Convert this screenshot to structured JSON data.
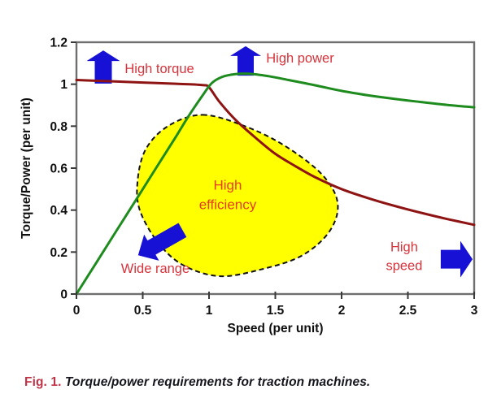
{
  "figure": {
    "caption_label": "Fig. 1.",
    "caption_text": "Torque/power requirements for traction machines."
  },
  "colors": {
    "plot_border": "#6f6f6f",
    "tick_mark": "#3a3a3a",
    "tick_text": "#101010",
    "axis_title_text": "#101010",
    "arrow_blue": "#1711d6",
    "caption_label_red": "#c03347",
    "background": "#ffffff"
  },
  "chart_data": {
    "type": "line",
    "title": "",
    "xlabel": "Speed (per unit)",
    "ylabel": "Torque/Power (per unit)",
    "xlim": [
      0,
      3
    ],
    "ylim": [
      0,
      1.2
    ],
    "grid": false,
    "legend": "none",
    "x_ticks": [
      0,
      0.5,
      1,
      1.5,
      2,
      2.5,
      3
    ],
    "x_tick_labels": [
      "0",
      "0.5",
      "1",
      "1.5",
      "2",
      "2.5",
      "3"
    ],
    "y_ticks": [
      0,
      0.2,
      0.4,
      0.6,
      0.8,
      1,
      1.2
    ],
    "y_tick_labels": [
      "0",
      "0.2",
      "0.4",
      "0.6",
      "0.8",
      "1",
      "1.2"
    ],
    "series": [
      {
        "name": "torque-curve",
        "color": "#8e1414",
        "width": 3,
        "points": [
          [
            0,
            1.02
          ],
          [
            0.25,
            1.014
          ],
          [
            0.5,
            1.008
          ],
          [
            0.75,
            1.002
          ],
          [
            0.95,
            0.996
          ],
          [
            1.0,
            0.985
          ],
          [
            1.08,
            0.915
          ],
          [
            1.2,
            0.83
          ],
          [
            1.35,
            0.745
          ],
          [
            1.5,
            0.668
          ],
          [
            1.65,
            0.61
          ],
          [
            1.8,
            0.557
          ],
          [
            2.0,
            0.5
          ],
          [
            2.2,
            0.457
          ],
          [
            2.4,
            0.42
          ],
          [
            2.6,
            0.387
          ],
          [
            2.8,
            0.357
          ],
          [
            3.0,
            0.33
          ]
        ]
      },
      {
        "name": "power-curve",
        "color": "#1e8b1e",
        "width": 3,
        "points": [
          [
            0,
            0
          ],
          [
            0.15,
            0.15
          ],
          [
            0.3,
            0.3
          ],
          [
            0.45,
            0.45
          ],
          [
            0.6,
            0.6
          ],
          [
            0.75,
            0.75
          ],
          [
            0.85,
            0.852
          ],
          [
            0.95,
            0.945
          ],
          [
            1.02,
            1.005
          ],
          [
            1.1,
            1.035
          ],
          [
            1.2,
            1.048
          ],
          [
            1.3,
            1.05
          ],
          [
            1.45,
            1.038
          ],
          [
            1.6,
            1.02
          ],
          [
            1.8,
            0.995
          ],
          [
            2.0,
            0.968
          ],
          [
            2.2,
            0.947
          ],
          [
            2.4,
            0.93
          ],
          [
            2.6,
            0.915
          ],
          [
            2.8,
            0.901
          ],
          [
            3.0,
            0.89
          ]
        ]
      }
    ],
    "efficiency_region": {
      "fill": "#ffff00",
      "border_color": "#111111",
      "border_style": "dashed",
      "points": [
        [
          0.95,
          0.854
        ],
        [
          1.27,
          0.8
        ],
        [
          1.57,
          0.707
        ],
        [
          1.85,
          0.571
        ],
        [
          1.97,
          0.435
        ],
        [
          1.91,
          0.3
        ],
        [
          1.7,
          0.183
        ],
        [
          1.39,
          0.117
        ],
        [
          1.08,
          0.085
        ],
        [
          0.81,
          0.136
        ],
        [
          0.62,
          0.241
        ],
        [
          0.48,
          0.396
        ],
        [
          0.46,
          0.532
        ],
        [
          0.52,
          0.687
        ],
        [
          0.69,
          0.8
        ]
      ]
    },
    "annotations": [
      {
        "id": "high-torque",
        "lines": [
          "High torque"
        ],
        "x": 0.626,
        "y": 1.072,
        "color": "#d7333b",
        "size": 16.5
      },
      {
        "id": "high-power",
        "lines": [
          "High power"
        ],
        "x": 1.687,
        "y": 1.123,
        "color": "#d7333b",
        "size": 16.5
      },
      {
        "id": "high-efficiency",
        "lines": [
          "High",
          "efficiency"
        ],
        "x": 1.141,
        "y": 0.472,
        "color": "#e63c1e",
        "size": 17
      },
      {
        "id": "wide-range",
        "lines": [
          "Wide range"
        ],
        "x": 0.595,
        "y": 0.12,
        "color": "#d7333b",
        "size": 16.5
      },
      {
        "id": "high-speed",
        "lines": [
          "High",
          "speed"
        ],
        "x": 2.472,
        "y": 0.178,
        "color": "#d7333b",
        "size": 16.5
      }
    ],
    "arrows": [
      {
        "id": "up-arrow-torque",
        "tail": [
          0.2025,
          1.003
        ],
        "tip": [
          0.2025,
          1.161
        ],
        "shaft_w": 21,
        "head_w": 41,
        "head_l": 13
      },
      {
        "id": "up-arrow-power",
        "tail": [
          1.276,
          1.041
        ],
        "tip": [
          1.276,
          1.181
        ],
        "shaft_w": 20,
        "head_w": 38,
        "head_l": 12
      },
      {
        "id": "wide-range-arrow",
        "tail": [
          0.8,
          0.305
        ],
        "tip": [
          0.465,
          0.185
        ],
        "shaft_w": 20,
        "head_w": 37,
        "head_l": 19
      },
      {
        "id": "high-speed-arrow",
        "tail": [
          2.748,
          0.166
        ],
        "tip": [
          2.988,
          0.166
        ],
        "shaft_w": 23,
        "head_w": 45,
        "head_l": 15
      }
    ]
  }
}
